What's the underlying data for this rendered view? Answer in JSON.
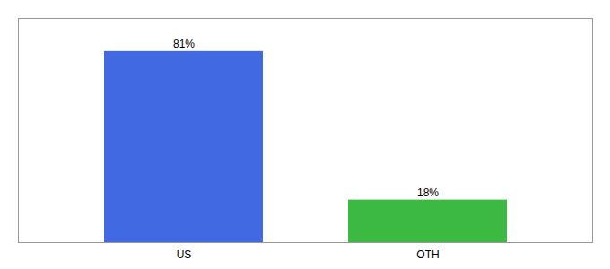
{
  "chart_data": {
    "type": "bar",
    "categories": [
      "US",
      "OTH"
    ],
    "values": [
      81,
      18
    ],
    "value_labels": [
      "81%",
      "18%"
    ],
    "colors": [
      "#4169E1",
      "#3CB943"
    ],
    "ylim": [
      0,
      95
    ],
    "data_labels": true,
    "tick_labels": "x",
    "grid": false
  }
}
